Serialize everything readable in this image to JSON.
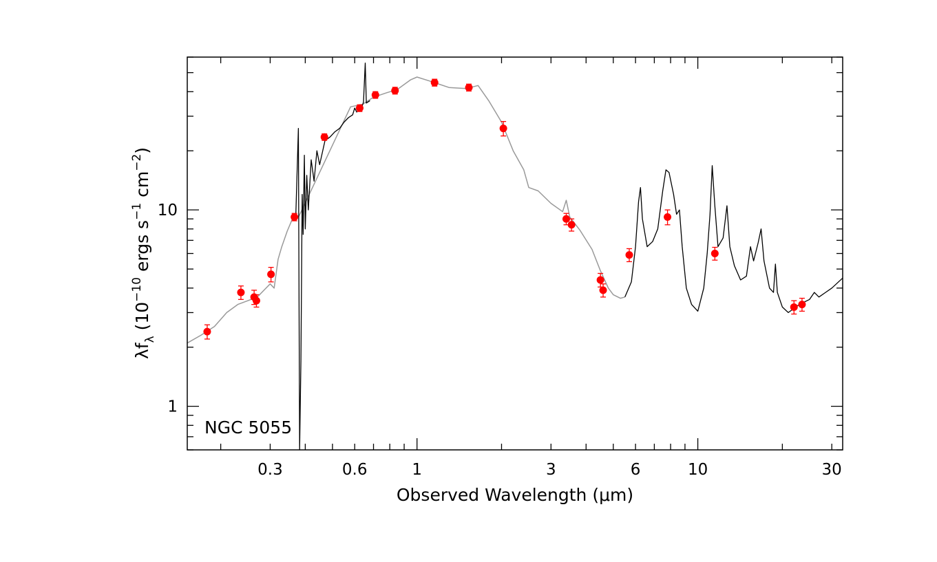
{
  "chart_data": {
    "type": "scatter",
    "title": "",
    "annotation": "NGC 5055",
    "xlabel": "Observed Wavelength (μm)",
    "ylabel": "λf_λ (10^-10 ergs s^-1 cm^-2)",
    "ylabel_parts": {
      "lambda": "λf",
      "sub": "λ",
      "open": " (10",
      "exp1": "−10",
      "mid": " ergs s",
      "exp2": "−1",
      "cm": " cm",
      "exp3": "−2",
      "close": ")"
    },
    "x_scale": "log",
    "y_scale": "log",
    "xlim": [
      0.152,
      32.8
    ],
    "ylim": [
      0.6,
      60
    ],
    "x_ticklabels": [
      "0.3",
      "0.6",
      "1",
      "3",
      "6",
      "10",
      "30"
    ],
    "x_tickvalues": [
      0.3,
      0.6,
      1,
      3,
      6,
      10,
      30
    ],
    "y_ticklabels": [
      "1",
      "10"
    ],
    "y_tickvalues": [
      1,
      10
    ],
    "colors": {
      "points": "#ff0000",
      "model": "#999999",
      "spectrum": "#000000"
    },
    "series": [
      {
        "style": "points-with-errorbars",
        "points": [
          {
            "x": 0.179,
            "y": 2.4,
            "err": 0.2
          },
          {
            "x": 0.236,
            "y": 3.8,
            "err": 0.3
          },
          {
            "x": 0.263,
            "y": 3.6,
            "err": 0.3
          },
          {
            "x": 0.268,
            "y": 3.45,
            "err": 0.25
          },
          {
            "x": 0.302,
            "y": 4.7,
            "err": 0.4
          },
          {
            "x": 0.366,
            "y": 9.2,
            "err": 0.4
          },
          {
            "x": 0.468,
            "y": 23.5,
            "err": 0.9
          },
          {
            "x": 0.625,
            "y": 33.0,
            "err": 1.3
          },
          {
            "x": 0.711,
            "y": 38.5,
            "err": 1.5
          },
          {
            "x": 0.835,
            "y": 40.5,
            "err": 1.6
          },
          {
            "x": 1.155,
            "y": 44.5,
            "err": 1.8
          },
          {
            "x": 1.53,
            "y": 42.0,
            "err": 1.7
          },
          {
            "x": 2.03,
            "y": 26.0,
            "err": 2.2
          },
          {
            "x": 3.4,
            "y": 9.0,
            "err": 0.6
          },
          {
            "x": 3.55,
            "y": 8.4,
            "err": 0.6
          },
          {
            "x": 4.5,
            "y": 4.4,
            "err": 0.35
          },
          {
            "x": 4.6,
            "y": 3.9,
            "err": 0.3
          },
          {
            "x": 5.7,
            "y": 5.9,
            "err": 0.45
          },
          {
            "x": 7.8,
            "y": 9.2,
            "err": 0.8
          },
          {
            "x": 11.5,
            "y": 6.0,
            "err": 0.45
          },
          {
            "x": 22.0,
            "y": 3.2,
            "err": 0.25
          },
          {
            "x": 23.5,
            "y": 3.3,
            "err": 0.25
          }
        ]
      },
      {
        "style": "model-line",
        "points": [
          [
            0.152,
            2.1
          ],
          [
            0.17,
            2.3
          ],
          [
            0.19,
            2.55
          ],
          [
            0.21,
            3.0
          ],
          [
            0.23,
            3.3
          ],
          [
            0.25,
            3.45
          ],
          [
            0.27,
            3.6
          ],
          [
            0.285,
            3.9
          ],
          [
            0.3,
            4.2
          ],
          [
            0.31,
            4.0
          ],
          [
            0.32,
            5.6
          ],
          [
            0.33,
            6.5
          ],
          [
            0.345,
            7.8
          ],
          [
            0.36,
            9.0
          ],
          [
            0.38,
            9.3
          ],
          [
            0.58,
            33.5
          ],
          [
            0.64,
            34.5
          ],
          [
            0.7,
            37.5
          ],
          [
            0.78,
            39.5
          ],
          [
            0.85,
            41
          ],
          [
            0.95,
            46
          ],
          [
            1.0,
            47.5
          ],
          [
            1.1,
            45.5
          ],
          [
            1.3,
            42
          ],
          [
            1.5,
            41.5
          ],
          [
            1.65,
            43
          ],
          [
            1.8,
            36
          ],
          [
            2.0,
            28
          ],
          [
            2.2,
            20
          ],
          [
            2.4,
            16
          ],
          [
            2.5,
            13
          ],
          [
            2.7,
            12.5
          ],
          [
            3.0,
            10.8
          ],
          [
            3.3,
            9.8
          ],
          [
            3.4,
            11.2
          ],
          [
            3.5,
            9.2
          ],
          [
            3.8,
            7.9
          ],
          [
            4.2,
            6.3
          ],
          [
            4.5,
            4.9
          ],
          [
            4.8,
            4.0
          ],
          [
            5.0,
            3.7
          ],
          [
            5.3,
            3.55
          ],
          [
            5.5,
            3.6
          ]
        ]
      },
      {
        "style": "spectrum-line",
        "points": [
          [
            0.37,
            9.2
          ],
          [
            0.378,
            26.0
          ],
          [
            0.382,
            0.6
          ],
          [
            0.386,
            1.7
          ],
          [
            0.39,
            12.0
          ],
          [
            0.393,
            7.5
          ],
          [
            0.397,
            19.0
          ],
          [
            0.4,
            8.0
          ],
          [
            0.405,
            15.0
          ],
          [
            0.41,
            10.0
          ],
          [
            0.42,
            18.0
          ],
          [
            0.43,
            14.0
          ],
          [
            0.44,
            20.0
          ],
          [
            0.45,
            17.0
          ],
          [
            0.47,
            22.5
          ],
          [
            0.49,
            23.5
          ],
          [
            0.51,
            25.0
          ],
          [
            0.53,
            26.0
          ],
          [
            0.55,
            28.0
          ],
          [
            0.57,
            29.5
          ],
          [
            0.59,
            30.5
          ],
          [
            0.6,
            33.0
          ],
          [
            0.61,
            31.5
          ],
          [
            0.62,
            32.0
          ],
          [
            0.635,
            33.0
          ],
          [
            0.645,
            35.5
          ],
          [
            0.654,
            56.0
          ],
          [
            0.66,
            35.0
          ],
          [
            0.68,
            36.0
          ]
        ]
      },
      {
        "style": "spectrum-line",
        "points": [
          [
            5.5,
            3.6
          ],
          [
            5.8,
            4.3
          ],
          [
            6.0,
            6.5
          ],
          [
            6.15,
            11.0
          ],
          [
            6.25,
            13.0
          ],
          [
            6.35,
            9.0
          ],
          [
            6.6,
            6.5
          ],
          [
            6.9,
            6.9
          ],
          [
            7.2,
            8.0
          ],
          [
            7.5,
            12.5
          ],
          [
            7.7,
            16.0
          ],
          [
            7.9,
            15.5
          ],
          [
            8.2,
            12.0
          ],
          [
            8.4,
            9.5
          ],
          [
            8.6,
            10.0
          ],
          [
            8.8,
            6.5
          ],
          [
            9.1,
            4.0
          ],
          [
            9.5,
            3.3
          ],
          [
            10.0,
            3.05
          ],
          [
            10.5,
            4.0
          ],
          [
            10.8,
            6.0
          ],
          [
            11.05,
            9.5
          ],
          [
            11.25,
            16.8
          ],
          [
            11.5,
            10.5
          ],
          [
            11.8,
            6.5
          ],
          [
            12.3,
            7.2
          ],
          [
            12.7,
            10.5
          ],
          [
            13.0,
            6.5
          ],
          [
            13.5,
            5.2
          ],
          [
            14.2,
            4.4
          ],
          [
            14.9,
            4.6
          ],
          [
            15.4,
            6.5
          ],
          [
            15.8,
            5.5
          ],
          [
            16.4,
            6.8
          ],
          [
            16.8,
            8.0
          ],
          [
            17.2,
            5.5
          ],
          [
            18.0,
            4.0
          ],
          [
            18.6,
            3.8
          ],
          [
            18.9,
            5.3
          ],
          [
            19.2,
            3.8
          ],
          [
            20.0,
            3.2
          ],
          [
            21.0,
            3.0
          ],
          [
            23.0,
            3.3
          ],
          [
            25.0,
            3.5
          ],
          [
            26.0,
            3.8
          ],
          [
            27.0,
            3.6
          ],
          [
            28.5,
            3.8
          ],
          [
            30.0,
            4.0
          ],
          [
            32.8,
            4.5
          ]
        ]
      }
    ]
  }
}
